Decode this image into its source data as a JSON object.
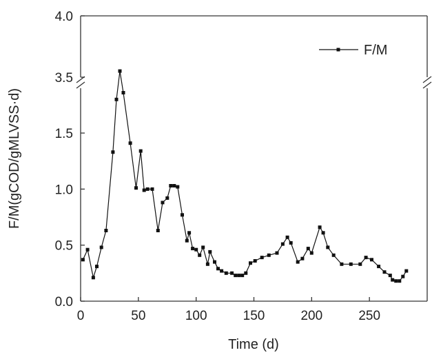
{
  "chart_data": {
    "type": "line",
    "xlabel": "Time (d)",
    "ylabel": "F/M(gCOD/gMLVSS·d)",
    "xlim": [
      0,
      300
    ],
    "ylim_lower": [
      0,
      2.0
    ],
    "ylim_upper": [
      3.5,
      4.0
    ],
    "axis_break": "between 2.0 and 3.5",
    "x_ticks": [
      "0",
      "50",
      "100",
      "150",
      "200",
      "250"
    ],
    "x_tick_values": [
      0,
      50,
      100,
      150,
      200,
      250
    ],
    "y_ticks_lower": [
      "0.0",
      "0.5",
      "1.0",
      "1.5"
    ],
    "y_tick_values_lower": [
      0.0,
      0.5,
      1.0,
      1.5
    ],
    "y_ticks_upper": [
      "3.5",
      "4.0"
    ],
    "y_tick_values_upper": [
      3.5,
      4.0
    ],
    "legend_position": "top-right",
    "series": [
      {
        "name": "F/M",
        "color": "#111111",
        "marker": "square",
        "x": [
          2,
          6,
          11,
          14,
          18,
          22,
          28,
          31,
          34,
          37,
          43,
          48,
          52,
          55,
          58,
          62,
          67,
          71,
          75,
          78,
          81,
          84,
          88,
          92,
          94,
          97,
          100,
          103,
          106,
          110,
          112,
          116,
          119,
          122,
          126,
          131,
          134,
          137,
          140,
          143,
          147,
          151,
          157,
          163,
          170,
          175,
          179,
          182,
          188,
          192,
          197,
          200,
          207,
          210,
          214,
          219,
          226,
          234,
          242,
          247,
          252,
          258,
          263,
          268,
          270,
          273,
          276,
          279,
          282
        ],
        "y": [
          0.37,
          0.46,
          0.21,
          0.31,
          0.48,
          0.63,
          1.33,
          1.8,
          3.55,
          1.86,
          1.41,
          1.01,
          1.34,
          0.99,
          1.0,
          1.0,
          0.63,
          0.88,
          0.92,
          1.03,
          1.03,
          1.02,
          0.77,
          0.54,
          0.61,
          0.47,
          0.46,
          0.41,
          0.48,
          0.33,
          0.44,
          0.35,
          0.29,
          0.27,
          0.25,
          0.25,
          0.23,
          0.23,
          0.23,
          0.25,
          0.34,
          0.36,
          0.39,
          0.41,
          0.43,
          0.51,
          0.57,
          0.52,
          0.35,
          0.38,
          0.47,
          0.43,
          0.66,
          0.61,
          0.48,
          0.41,
          0.33,
          0.33,
          0.33,
          0.39,
          0.37,
          0.31,
          0.26,
          0.23,
          0.19,
          0.18,
          0.18,
          0.22,
          0.27
        ]
      }
    ]
  }
}
